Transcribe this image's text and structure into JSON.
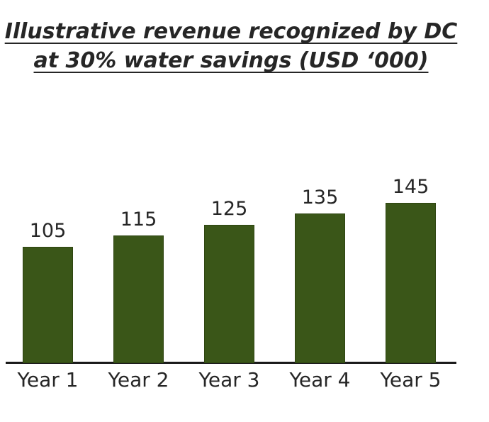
{
  "page": {
    "background": "#ffffff"
  },
  "title": {
    "line1": "Illustrative revenue recognized by DC",
    "line2": "at 30% water savings (USD ‘000)",
    "color": "#262626"
  },
  "chart_data": {
    "type": "bar",
    "title": "Illustrative revenue recognized by DC at 30% water savings (USD ‘000)",
    "categories": [
      "Year 1",
      "Year 2",
      "Year 3",
      "Year 4",
      "Year 5"
    ],
    "values": [
      105,
      115,
      125,
      135,
      145
    ],
    "data_labels": [
      "105",
      "115",
      "125",
      "135",
      "145"
    ],
    "xlabel": "",
    "ylabel": "",
    "ylim": [
      0,
      150
    ],
    "grid": false,
    "legend": "none",
    "bar_color": "#3A5618",
    "bar_border_color": "#2E4511",
    "axis_line_color": "#1A1A1A",
    "label_color": "#262626"
  }
}
